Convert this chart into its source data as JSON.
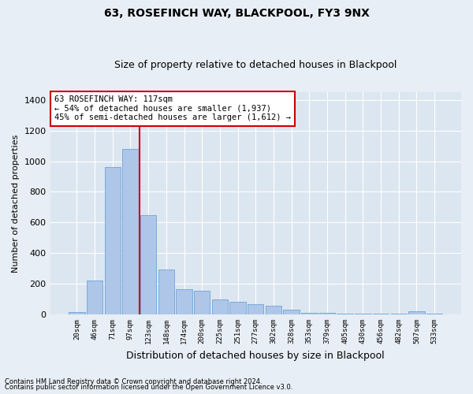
{
  "title": "63, ROSEFINCH WAY, BLACKPOOL, FY3 9NX",
  "subtitle": "Size of property relative to detached houses in Blackpool",
  "xlabel": "Distribution of detached houses by size in Blackpool",
  "ylabel": "Number of detached properties",
  "footnote1": "Contains HM Land Registry data © Crown copyright and database right 2024.",
  "footnote2": "Contains public sector information licensed under the Open Government Licence v3.0.",
  "bar_labels": [
    "20sqm",
    "46sqm",
    "71sqm",
    "97sqm",
    "123sqm",
    "148sqm",
    "174sqm",
    "200sqm",
    "225sqm",
    "251sqm",
    "277sqm",
    "302sqm",
    "328sqm",
    "353sqm",
    "379sqm",
    "405sqm",
    "430sqm",
    "456sqm",
    "482sqm",
    "507sqm",
    "533sqm"
  ],
  "bar_values": [
    18,
    220,
    960,
    1080,
    650,
    295,
    165,
    155,
    100,
    80,
    65,
    55,
    30,
    10,
    10,
    5,
    5,
    5,
    5,
    20,
    5
  ],
  "bar_color": "#aec6e8",
  "bar_edgecolor": "#5b9bd5",
  "vline_pos": 3.5,
  "vline_color": "#cc0000",
  "annotation_text": "63 ROSEFINCH WAY: 117sqm\n← 54% of detached houses are smaller (1,937)\n45% of semi-detached houses are larger (1,612) →",
  "annotation_box_color": "#cc0000",
  "ylim": [
    0,
    1450
  ],
  "yticks": [
    0,
    200,
    400,
    600,
    800,
    1000,
    1200,
    1400
  ],
  "background_color": "#e8eef5",
  "plot_background": "#dce6f0",
  "title_fontsize": 10,
  "subtitle_fontsize": 9,
  "xlabel_fontsize": 9,
  "ylabel_fontsize": 8
}
